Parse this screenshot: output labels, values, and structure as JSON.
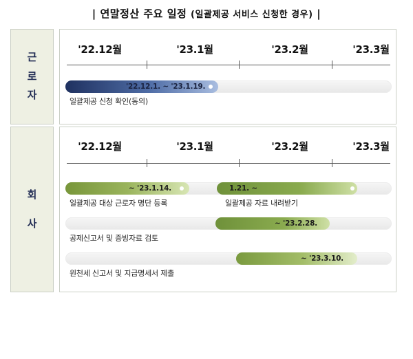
{
  "title": {
    "main": "연말정산 주요 일정",
    "sub": "(일괄제공 서비스 신청한 경우)",
    "bar": "|"
  },
  "worker": {
    "label_chars": [
      "근",
      "로",
      "자"
    ],
    "months": [
      "'22.12월",
      "'23.1월",
      "'23.2월",
      "'23.3월"
    ],
    "rows": [
      {
        "bar_text": "'22.12.1. ~ '23.1.19.",
        "caption": "일괄제공 신청 확인(동의)"
      }
    ]
  },
  "company": {
    "label_chars": [
      "회",
      "사"
    ],
    "months": [
      "'22.12월",
      "'23.1월",
      "'23.2월",
      "'23.3월"
    ],
    "rows": [
      {
        "bar_text": "~ '23.1.14.",
        "caption": "일괄제공 대상 근로자 명단 등록"
      },
      {
        "bar_text": "1.21. ~",
        "caption": "일괄제공 자료 내려받기"
      },
      {
        "bar_text": "~ '23.2.28.",
        "caption": "공제신고서 및 증빙자료 검토"
      },
      {
        "bar_text": "~ '23.3.10.",
        "caption": "원천세 신고서 및 지급명세서 제출"
      }
    ]
  },
  "colors": {
    "navy_bar": "#1f3160",
    "green_bar": "#8aab4f",
    "label_bg": "#eef0e3",
    "label_text": "#1f2a52"
  }
}
